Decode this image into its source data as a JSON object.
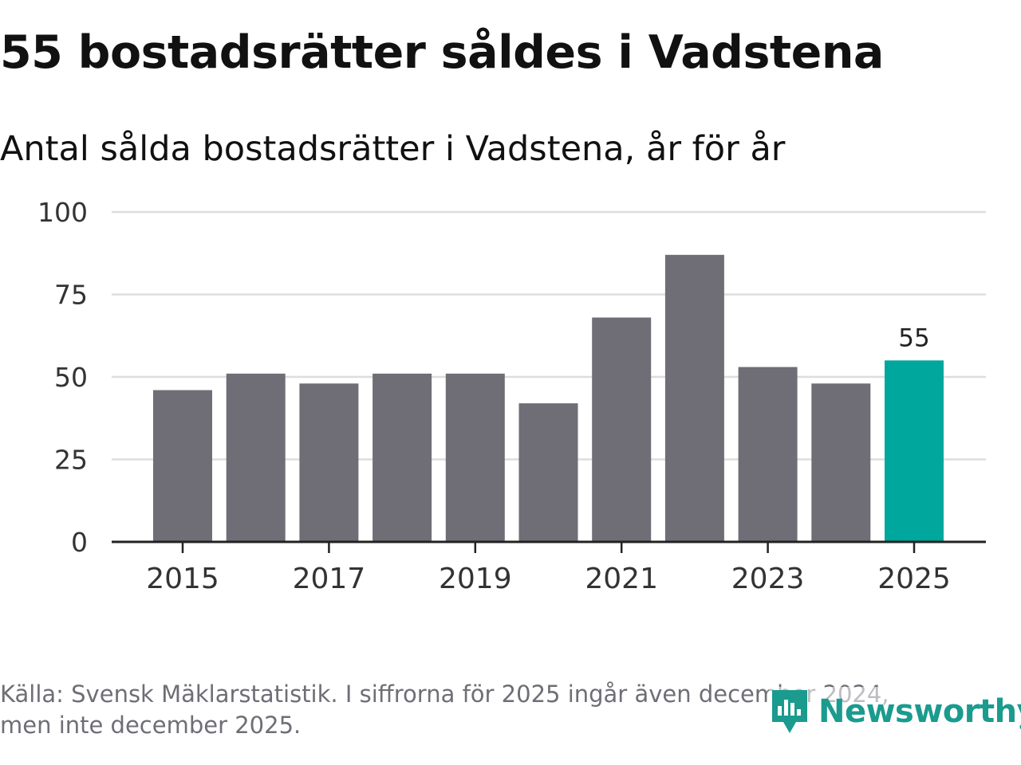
{
  "title": "55 bostadsrätter såldes i Vadstena",
  "subtitle": "Antal sålda bostadsrätter i Vadstena, år för år",
  "footer": {
    "line1": "Källa: Svensk Mäklarstatistik. I siffrorna för 2025 ingår även december 2024,",
    "line2": "men inte december 2025."
  },
  "brand": {
    "name": "Newsworthy",
    "icon": "newsworthy-logo-icon",
    "color": "#1a9b8e"
  },
  "colors": {
    "bar": "#6f6e76",
    "highlight": "#00a79d",
    "grid": "#dddddd",
    "axis": "#222222"
  },
  "chart_data": {
    "type": "bar",
    "title": "Antal sålda bostadsrätter i Vadstena, år för år",
    "xlabel": "",
    "ylabel": "",
    "categories": [
      "2015",
      "2016",
      "2017",
      "2018",
      "2019",
      "2020",
      "2021",
      "2022",
      "2023",
      "2024",
      "2025"
    ],
    "values": [
      46,
      51,
      48,
      51,
      51,
      42,
      68,
      87,
      53,
      48,
      55
    ],
    "highlight_index": 10,
    "data_labels": [
      {
        "index": 10,
        "text": "55"
      }
    ],
    "x_tick_labels": [
      "2015",
      "2017",
      "2019",
      "2021",
      "2023",
      "2025"
    ],
    "y_ticks": [
      0,
      25,
      50,
      75,
      100
    ],
    "ylim": [
      0,
      100
    ],
    "grid": true,
    "legend": "none"
  }
}
